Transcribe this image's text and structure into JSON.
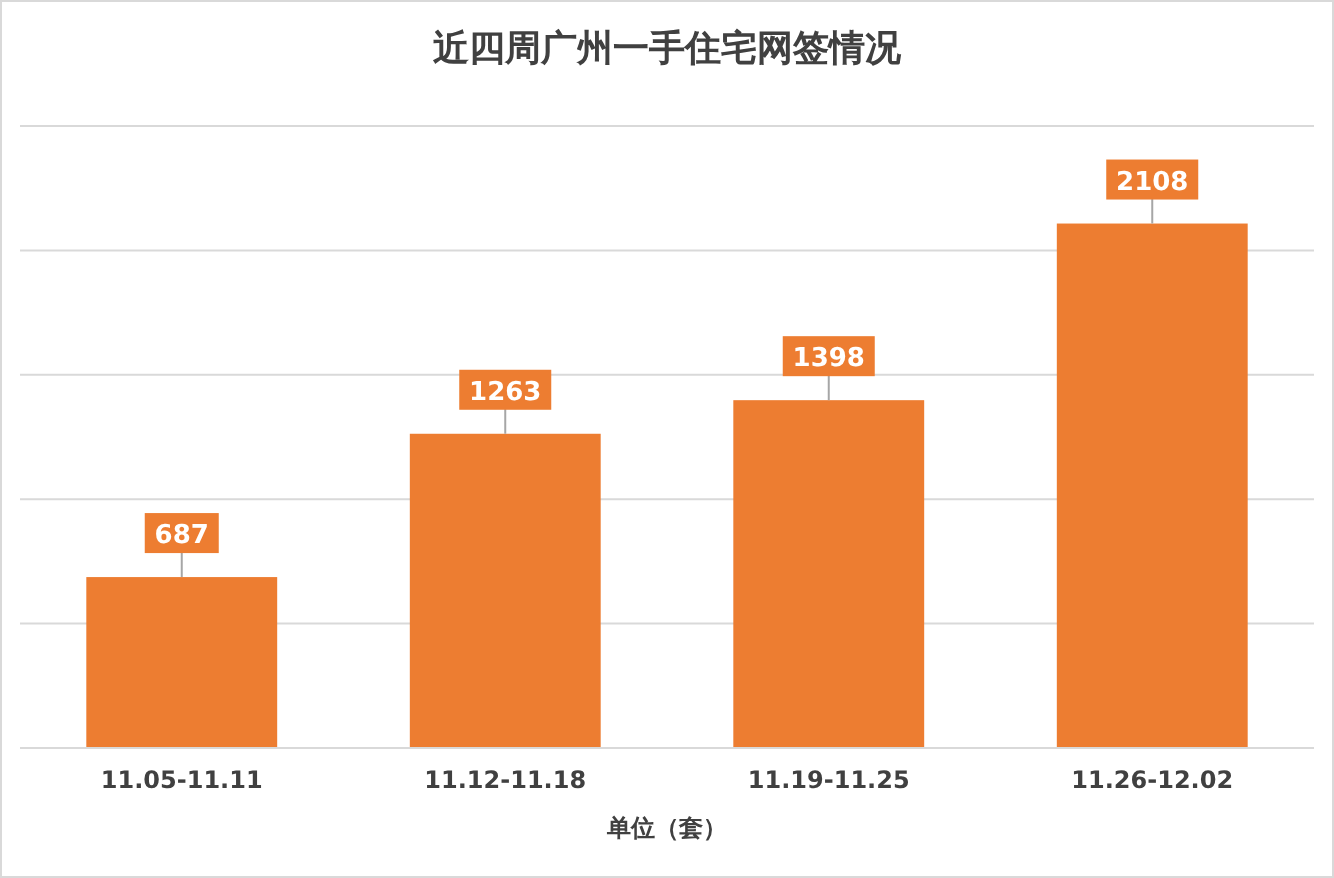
{
  "chart_data": {
    "type": "bar",
    "title": "近四周广州一手住宅网签情况",
    "xlabel": "单位（套）",
    "categories": [
      "11.05-11.11",
      "11.12-11.18",
      "11.19-11.25",
      "11.26-12.02"
    ],
    "values": [
      687,
      1263,
      1398,
      2108
    ],
    "color": "#ed7d31",
    "ylim": [
      0,
      2500
    ],
    "yticks": [
      {
        "value": 0,
        "label": null
      },
      {
        "value": 500,
        "label": null
      },
      {
        "value": 1000,
        "label": null
      },
      {
        "value": 1500,
        "label": null
      },
      {
        "value": 2000,
        "label": null
      },
      {
        "value": 2500,
        "label": null
      }
    ],
    "grid": "y",
    "data_labels": true
  }
}
